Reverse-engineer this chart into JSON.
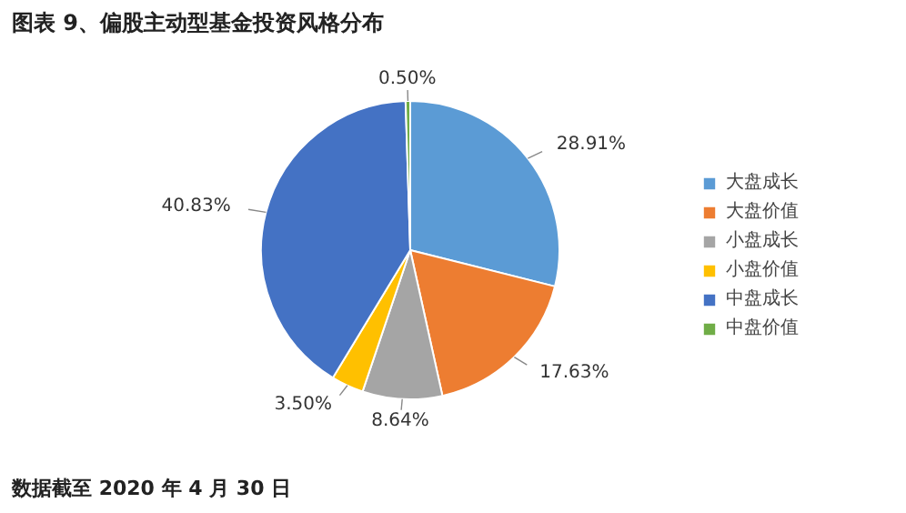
{
  "chart_data": {
    "type": "pie",
    "title": "图表 9、偏股主动型基金投资风格分布",
    "categories": [
      "大盘成长",
      "大盘价值",
      "小盘成长",
      "小盘价值",
      "中盘成长",
      "中盘价值"
    ],
    "values": [
      28.91,
      17.63,
      8.64,
      3.5,
      40.83,
      0.5
    ],
    "colors": [
      "#5b9bd5",
      "#ed7d31",
      "#a5a5a5",
      "#ffc000",
      "#4472c4",
      "#70ad47"
    ],
    "value_labels": [
      "28.91%",
      "17.63%",
      "8.64%",
      "3.50%",
      "40.83%",
      "0.50%"
    ],
    "legend": "right",
    "annotations": [
      "数据截至 2020 年 4 月 30 日"
    ]
  }
}
